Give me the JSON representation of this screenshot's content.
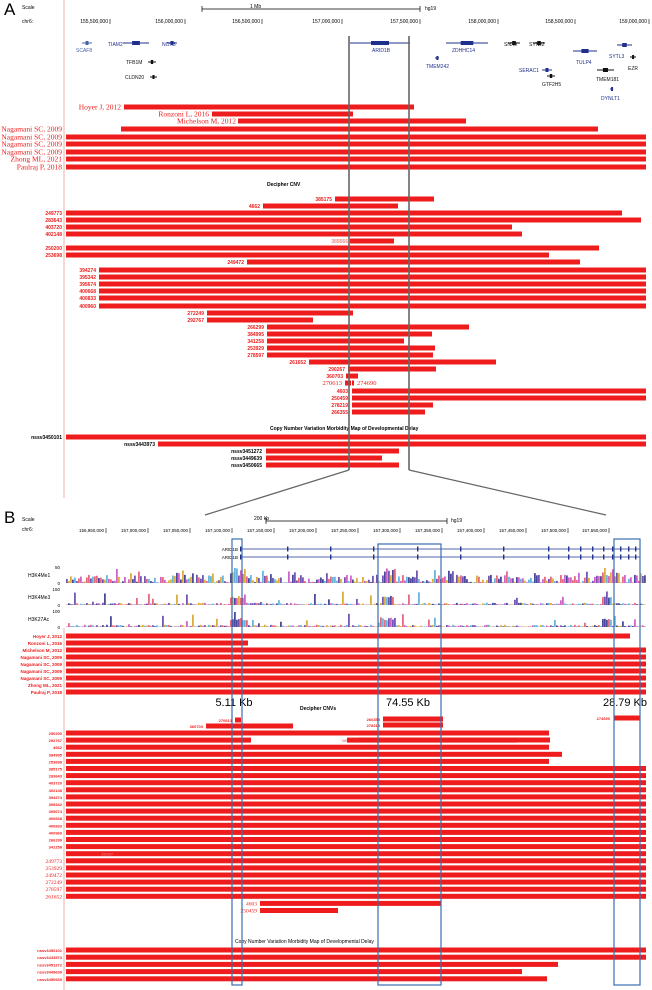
{
  "panel_a": {
    "label": "A",
    "scale_label": "Scale",
    "scale_value": "1 Mb",
    "assembly": "hg19",
    "chrom_label": "chr6:",
    "ticks": [
      "155,500,000",
      "156,000,000",
      "156,500,000",
      "157,000,000",
      "157,500,000",
      "158,000,000",
      "158,500,000",
      "159,000,000"
    ],
    "genes": [
      {
        "name": "SCAF8",
        "color": "#4a63a8"
      },
      {
        "name": "TIAM2",
        "color": "#1f2f8c"
      },
      {
        "name": "NOX3",
        "color": "#1f2f8c"
      },
      {
        "name": "TFB1M",
        "color": "#111"
      },
      {
        "name": "CLDN20",
        "color": "#111"
      },
      {
        "name": "ARID1B",
        "color": "#1f2f8c"
      },
      {
        "name": "TMEM242",
        "color": "#1f2f8c"
      },
      {
        "name": "ZDHHC14",
        "color": "#1f2f8c"
      },
      {
        "name": "SNX9",
        "color": "#111"
      },
      {
        "name": "SYNJ2",
        "color": "#111"
      },
      {
        "name": "SERAC1",
        "color": "#1f2f8c"
      },
      {
        "name": "GTF2H5",
        "color": "#111"
      },
      {
        "name": "TULP4",
        "color": "#1f2f8c"
      },
      {
        "name": "SYTL3",
        "color": "#1f2f8c"
      },
      {
        "name": "EZR",
        "color": "#111"
      },
      {
        "name": "TMEM181",
        "color": "#111"
      },
      {
        "name": "DYNLT1",
        "color": "#1f2f8c"
      }
    ],
    "literature_tracks": [
      "Hoyer J, 2012",
      "Ronzoni L, 2016",
      "Michelson M, 2012",
      "Nagamani SC, 2009",
      "Nagamani SC, 2009",
      "Nagamani SC, 2009",
      "Nagamani SC, 2009",
      "Zhong ML, 2021",
      "Paulraj P, 2018"
    ],
    "decipher_title": "Decipher CNV",
    "decipher_ids": [
      "385175",
      "4662",
      "249773",
      "283643",
      "403720",
      "402148",
      "389566",
      "250200",
      "253698",
      "249472",
      "394274",
      "395342",
      "395674",
      "400668",
      "400833",
      "400960",
      "272249",
      "292767",
      "266299",
      "384995",
      "341258",
      "253929",
      "278597",
      "261652",
      "290267",
      "360703",
      "270613",
      "274690",
      "4603",
      "250459",
      "278219",
      "266355"
    ],
    "cnv_map_title": "Copy Number Variation Morbidity Map of Developmental Delay",
    "cnv_map_ids": [
      "nssv3450101",
      "nssv3443973",
      "nssv3451272",
      "nssv3449639",
      "nssv3450665"
    ]
  },
  "panel_b": {
    "label": "B",
    "scale_label": "Scale",
    "scale_value": "200 kb",
    "assembly": "hg19",
    "chrom_label": "chr6:",
    "ticks": [
      "156,950,000",
      "157,000,000",
      "157,050,000",
      "157,100,000",
      "157,150,000",
      "157,200,000",
      "157,250,000",
      "157,300,000",
      "157,350,000",
      "157,400,000",
      "157,450,000",
      "157,500,000",
      "157,550,000"
    ],
    "transcripts": [
      "ARID1B",
      "ARID1B"
    ],
    "histone_tracks": [
      {
        "name": "H3K4Me1",
        "max": "50",
        "min": "0"
      },
      {
        "name": "H3K4Me3",
        "max": "150",
        "min": "0"
      },
      {
        "name": "H3K27Ac",
        "max": "100",
        "min": "0"
      }
    ],
    "literature_tracks": [
      "Hoyer J, 2012",
      "Ronzoni L, 2016",
      "Michelson M, 2012",
      "Nagamani SC, 2009",
      "Nagamani SC, 2009",
      "Nagamani SC, 2009",
      "Nagamani SC, 2009",
      "Zhong ML, 2021",
      "Paulraj P, 2018"
    ],
    "region_sizes": [
      "5.11 Kb",
      "74.55 Kb",
      "28.79 Kb"
    ],
    "decipher_title": "Decipher CNVs",
    "decipher_mid_ids": [
      "270613",
      "266355",
      "278219",
      "274690",
      "360703",
      "389566"
    ],
    "decipher_ids": [
      "250200",
      "292767",
      "4662",
      "384995",
      "253698",
      "385175",
      "283643",
      "403720",
      "402148",
      "394274",
      "395342",
      "395674",
      "400668",
      "400833",
      "400960",
      "266299",
      "341258",
      "290267",
      "249773",
      "253929",
      "249472",
      "272249",
      "278597",
      "261652",
      "4603",
      "250459"
    ],
    "cnv_map_title": "Copy Number Variation Morbidity Map of Developmental Delay",
    "cnv_map_ids": [
      "nssv3450101",
      "nssv3443973",
      "nssv3451272",
      "nssv3449639",
      "nssv3450665"
    ]
  }
}
